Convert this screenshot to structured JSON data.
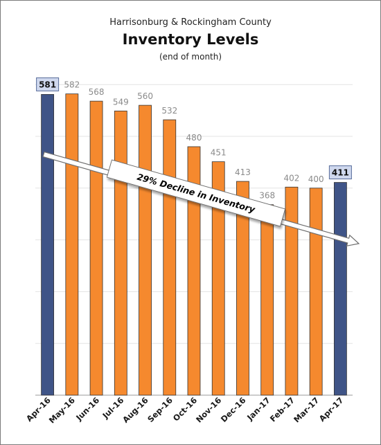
{
  "chart_data": {
    "type": "bar",
    "title_line1": "Harrisonburg & Rockingham County",
    "title": "Inventory Levels",
    "subtitle": "(end of month)",
    "categories": [
      "Apr-16",
      "May-16",
      "Jun-16",
      "Jul-16",
      "Aug-16",
      "Sep-16",
      "Oct-16",
      "Nov-16",
      "Dec-16",
      "Jan-17",
      "Feb-17",
      "Mar-17",
      "Apr-17"
    ],
    "values": [
      581,
      582,
      568,
      549,
      560,
      532,
      480,
      451,
      413,
      368,
      402,
      400,
      411
    ],
    "highlighted_indices": [
      0,
      12
    ],
    "ylim": [
      0,
      600
    ],
    "grid": true,
    "xlabel": "",
    "ylabel": "",
    "annotation": "29% Decline in Inventory",
    "colors": {
      "bar": "#f5892e",
      "bar_highlight": "#3f5487",
      "bar_outline": "#333333",
      "label_box": "#cfd8ee",
      "grid": "#e3e3e3",
      "arrow_fill": "#ffffff",
      "arrow_stroke": "#6e6e6e"
    }
  }
}
